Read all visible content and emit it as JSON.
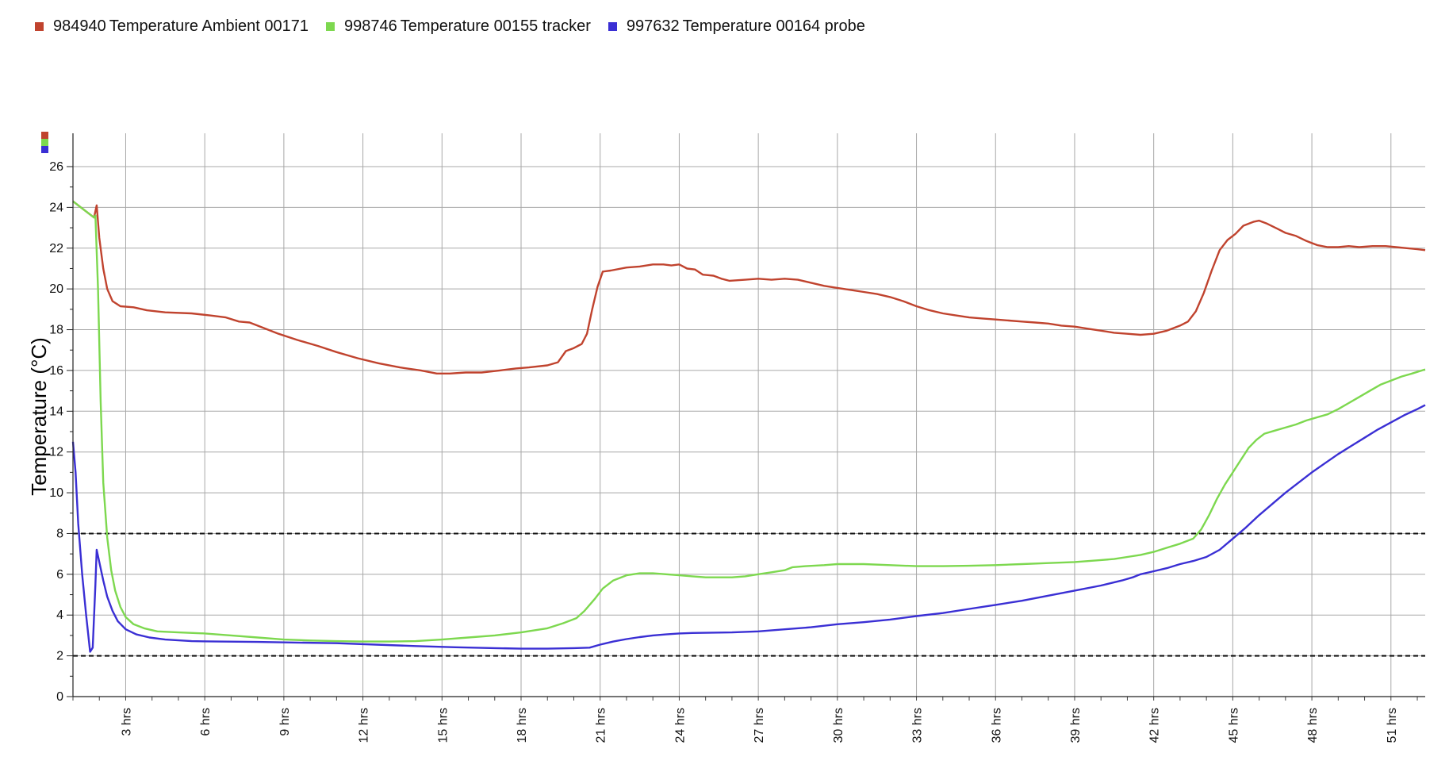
{
  "legend": [
    {
      "id": "984940",
      "label": "Temperature Ambient 00171",
      "color": "#c0432e"
    },
    {
      "id": "998746",
      "label": "Temperature 00155 tracker",
      "color": "#7dd84f"
    },
    {
      "id": "997632",
      "label": "Temperature 00164 probe",
      "color": "#3a2fd4"
    }
  ],
  "chart_data": {
    "type": "line",
    "title": "",
    "xlabel": "",
    "ylabel": "Temperature (°C)",
    "xlim": [
      1,
      52.3
    ],
    "ylim": [
      0,
      26
    ],
    "x_unit": "hrs",
    "x_ticks": [
      3,
      6,
      9,
      12,
      15,
      18,
      21,
      24,
      27,
      30,
      33,
      36,
      39,
      42,
      45,
      48,
      51
    ],
    "x_tick_labels": [
      "3 hrs",
      "6 hrs",
      "9 hrs",
      "12 hrs",
      "15 hrs",
      "18 hrs",
      "21 hrs",
      "24 hrs",
      "27 hrs",
      "30 hrs",
      "33 hrs",
      "36 hrs",
      "39 hrs",
      "42 hrs",
      "45 hrs",
      "48 hrs",
      "51 hrs"
    ],
    "y_ticks": [
      0,
      2,
      4,
      6,
      8,
      10,
      12,
      14,
      16,
      18,
      20,
      22,
      24,
      26
    ],
    "y_tick_labels": [
      "0",
      "2",
      "4",
      "6",
      "8",
      "10",
      "12",
      "14",
      "16",
      "18",
      "20",
      "22",
      "24",
      "26"
    ],
    "grid": true,
    "legend_position": "top-left",
    "thresholds": [
      {
        "value": 8,
        "style": "dashed",
        "color": "#111111"
      },
      {
        "value": 2,
        "style": "dashed",
        "color": "#111111"
      }
    ],
    "series": [
      {
        "name": "984940 Temperature Ambient 00171",
        "color": "#c0432e",
        "points": [
          [
            1.0,
            24.3
          ],
          [
            1.3,
            24.0
          ],
          [
            1.6,
            23.7
          ],
          [
            1.8,
            23.5
          ],
          [
            1.9,
            24.1
          ],
          [
            2.0,
            22.5
          ],
          [
            2.15,
            21.0
          ],
          [
            2.3,
            20.0
          ],
          [
            2.5,
            19.4
          ],
          [
            2.8,
            19.15
          ],
          [
            3.3,
            19.1
          ],
          [
            3.8,
            18.95
          ],
          [
            4.5,
            18.85
          ],
          [
            5.5,
            18.8
          ],
          [
            6.2,
            18.7
          ],
          [
            6.8,
            18.6
          ],
          [
            7.3,
            18.4
          ],
          [
            7.7,
            18.35
          ],
          [
            8.0,
            18.2
          ],
          [
            8.8,
            17.8
          ],
          [
            9.5,
            17.5
          ],
          [
            10.3,
            17.2
          ],
          [
            11.0,
            16.9
          ],
          [
            11.8,
            16.6
          ],
          [
            12.6,
            16.35
          ],
          [
            13.4,
            16.15
          ],
          [
            14.2,
            16.0
          ],
          [
            14.8,
            15.85
          ],
          [
            15.3,
            15.85
          ],
          [
            15.9,
            15.9
          ],
          [
            16.5,
            15.9
          ],
          [
            17.2,
            16.0
          ],
          [
            17.8,
            16.1
          ],
          [
            18.3,
            16.15
          ],
          [
            19.0,
            16.25
          ],
          [
            19.4,
            16.4
          ],
          [
            19.7,
            16.95
          ],
          [
            20.0,
            17.1
          ],
          [
            20.3,
            17.3
          ],
          [
            20.5,
            17.8
          ],
          [
            20.7,
            19.0
          ],
          [
            20.9,
            20.1
          ],
          [
            21.1,
            20.85
          ],
          [
            21.4,
            20.9
          ],
          [
            22.0,
            21.05
          ],
          [
            22.5,
            21.1
          ],
          [
            23.0,
            21.2
          ],
          [
            23.4,
            21.2
          ],
          [
            23.7,
            21.15
          ],
          [
            24.0,
            21.2
          ],
          [
            24.3,
            21.0
          ],
          [
            24.6,
            20.95
          ],
          [
            24.9,
            20.7
          ],
          [
            25.3,
            20.65
          ],
          [
            25.6,
            20.5
          ],
          [
            25.9,
            20.4
          ],
          [
            26.5,
            20.45
          ],
          [
            27.0,
            20.5
          ],
          [
            27.5,
            20.45
          ],
          [
            28.0,
            20.5
          ],
          [
            28.5,
            20.45
          ],
          [
            29.0,
            20.3
          ],
          [
            29.5,
            20.15
          ],
          [
            30.0,
            20.05
          ],
          [
            30.5,
            19.95
          ],
          [
            31.0,
            19.85
          ],
          [
            31.5,
            19.75
          ],
          [
            32.0,
            19.6
          ],
          [
            32.5,
            19.4
          ],
          [
            33.0,
            19.15
          ],
          [
            33.5,
            18.95
          ],
          [
            34.0,
            18.8
          ],
          [
            34.5,
            18.7
          ],
          [
            35.0,
            18.6
          ],
          [
            35.5,
            18.55
          ],
          [
            36.0,
            18.5
          ],
          [
            36.5,
            18.45
          ],
          [
            37.0,
            18.4
          ],
          [
            37.5,
            18.35
          ],
          [
            38.0,
            18.3
          ],
          [
            38.5,
            18.2
          ],
          [
            39.0,
            18.15
          ],
          [
            39.5,
            18.05
          ],
          [
            40.0,
            17.95
          ],
          [
            40.5,
            17.85
          ],
          [
            41.0,
            17.8
          ],
          [
            41.5,
            17.75
          ],
          [
            42.0,
            17.8
          ],
          [
            42.5,
            17.95
          ],
          [
            43.0,
            18.2
          ],
          [
            43.3,
            18.4
          ],
          [
            43.6,
            18.9
          ],
          [
            43.9,
            19.8
          ],
          [
            44.2,
            20.9
          ],
          [
            44.5,
            21.9
          ],
          [
            44.8,
            22.4
          ],
          [
            45.1,
            22.7
          ],
          [
            45.4,
            23.1
          ],
          [
            45.8,
            23.3
          ],
          [
            46.0,
            23.35
          ],
          [
            46.3,
            23.2
          ],
          [
            46.7,
            22.95
          ],
          [
            47.0,
            22.75
          ],
          [
            47.4,
            22.6
          ],
          [
            47.8,
            22.35
          ],
          [
            48.2,
            22.15
          ],
          [
            48.6,
            22.05
          ],
          [
            49.0,
            22.05
          ],
          [
            49.4,
            22.1
          ],
          [
            49.8,
            22.05
          ],
          [
            50.3,
            22.1
          ],
          [
            50.8,
            22.1
          ],
          [
            51.2,
            22.05
          ],
          [
            51.6,
            22.0
          ],
          [
            52.0,
            21.95
          ],
          [
            52.3,
            21.9
          ]
        ]
      },
      {
        "name": "998746 Temperature 00155 tracker",
        "color": "#7dd84f",
        "points": [
          [
            1.0,
            24.3
          ],
          [
            1.3,
            24.0
          ],
          [
            1.6,
            23.7
          ],
          [
            1.8,
            23.5
          ],
          [
            1.85,
            23.6
          ],
          [
            1.95,
            20.0
          ],
          [
            2.05,
            14.5
          ],
          [
            2.15,
            10.5
          ],
          [
            2.3,
            7.8
          ],
          [
            2.45,
            6.2
          ],
          [
            2.6,
            5.2
          ],
          [
            2.8,
            4.4
          ],
          [
            3.0,
            3.9
          ],
          [
            3.3,
            3.55
          ],
          [
            3.7,
            3.35
          ],
          [
            4.2,
            3.2
          ],
          [
            5.0,
            3.15
          ],
          [
            6.0,
            3.1
          ],
          [
            7.0,
            3.0
          ],
          [
            8.0,
            2.9
          ],
          [
            9.0,
            2.8
          ],
          [
            10.0,
            2.75
          ],
          [
            11.0,
            2.72
          ],
          [
            12.0,
            2.7
          ],
          [
            13.0,
            2.7
          ],
          [
            14.0,
            2.72
          ],
          [
            15.0,
            2.8
          ],
          [
            16.0,
            2.9
          ],
          [
            17.0,
            3.0
          ],
          [
            18.0,
            3.15
          ],
          [
            19.0,
            3.35
          ],
          [
            19.6,
            3.6
          ],
          [
            20.1,
            3.85
          ],
          [
            20.4,
            4.2
          ],
          [
            20.8,
            4.8
          ],
          [
            21.1,
            5.3
          ],
          [
            21.5,
            5.7
          ],
          [
            22.0,
            5.95
          ],
          [
            22.5,
            6.05
          ],
          [
            23.0,
            6.05
          ],
          [
            23.5,
            6.0
          ],
          [
            24.0,
            5.95
          ],
          [
            24.5,
            5.9
          ],
          [
            25.0,
            5.85
          ],
          [
            25.5,
            5.85
          ],
          [
            26.0,
            5.85
          ],
          [
            26.5,
            5.9
          ],
          [
            27.0,
            6.0
          ],
          [
            27.5,
            6.1
          ],
          [
            28.0,
            6.2
          ],
          [
            28.3,
            6.35
          ],
          [
            28.8,
            6.4
          ],
          [
            29.5,
            6.45
          ],
          [
            30.0,
            6.5
          ],
          [
            30.5,
            6.5
          ],
          [
            31.0,
            6.5
          ],
          [
            32.0,
            6.45
          ],
          [
            33.0,
            6.4
          ],
          [
            34.0,
            6.4
          ],
          [
            35.0,
            6.42
          ],
          [
            36.0,
            6.45
          ],
          [
            37.0,
            6.5
          ],
          [
            38.0,
            6.55
          ],
          [
            39.0,
            6.6
          ],
          [
            40.0,
            6.7
          ],
          [
            40.5,
            6.75
          ],
          [
            41.0,
            6.85
          ],
          [
            41.5,
            6.95
          ],
          [
            42.0,
            7.1
          ],
          [
            42.5,
            7.3
          ],
          [
            43.0,
            7.5
          ],
          [
            43.5,
            7.75
          ],
          [
            43.8,
            8.2
          ],
          [
            44.1,
            8.9
          ],
          [
            44.4,
            9.7
          ],
          [
            44.7,
            10.4
          ],
          [
            45.0,
            11.0
          ],
          [
            45.3,
            11.6
          ],
          [
            45.6,
            12.2
          ],
          [
            45.9,
            12.6
          ],
          [
            46.2,
            12.9
          ],
          [
            46.6,
            13.05
          ],
          [
            47.0,
            13.2
          ],
          [
            47.4,
            13.35
          ],
          [
            47.8,
            13.55
          ],
          [
            48.2,
            13.7
          ],
          [
            48.6,
            13.85
          ],
          [
            49.0,
            14.1
          ],
          [
            49.4,
            14.4
          ],
          [
            49.8,
            14.7
          ],
          [
            50.2,
            15.0
          ],
          [
            50.6,
            15.3
          ],
          [
            51.0,
            15.5
          ],
          [
            51.4,
            15.7
          ],
          [
            51.8,
            15.85
          ],
          [
            52.3,
            16.05
          ]
        ]
      },
      {
        "name": "997632 Temperature 00164 probe",
        "color": "#3a2fd4",
        "points": [
          [
            1.0,
            12.5
          ],
          [
            1.1,
            11.0
          ],
          [
            1.2,
            8.5
          ],
          [
            1.35,
            6.0
          ],
          [
            1.5,
            4.0
          ],
          [
            1.65,
            2.2
          ],
          [
            1.75,
            2.4
          ],
          [
            1.85,
            5.5
          ],
          [
            1.9,
            7.2
          ],
          [
            2.0,
            6.6
          ],
          [
            2.15,
            5.7
          ],
          [
            2.3,
            4.9
          ],
          [
            2.5,
            4.2
          ],
          [
            2.7,
            3.7
          ],
          [
            3.0,
            3.3
          ],
          [
            3.4,
            3.05
          ],
          [
            3.9,
            2.9
          ],
          [
            4.5,
            2.8
          ],
          [
            5.5,
            2.72
          ],
          [
            6.5,
            2.7
          ],
          [
            8.0,
            2.68
          ],
          [
            9.5,
            2.65
          ],
          [
            11.0,
            2.62
          ],
          [
            12.5,
            2.55
          ],
          [
            14.0,
            2.48
          ],
          [
            15.5,
            2.42
          ],
          [
            17.0,
            2.38
          ],
          [
            18.0,
            2.35
          ],
          [
            19.0,
            2.35
          ],
          [
            20.0,
            2.38
          ],
          [
            20.6,
            2.4
          ],
          [
            21.0,
            2.55
          ],
          [
            21.5,
            2.7
          ],
          [
            22.0,
            2.82
          ],
          [
            22.5,
            2.92
          ],
          [
            23.0,
            3.0
          ],
          [
            23.5,
            3.05
          ],
          [
            24.0,
            3.1
          ],
          [
            24.5,
            3.12
          ],
          [
            25.0,
            3.13
          ],
          [
            26.0,
            3.15
          ],
          [
            27.0,
            3.2
          ],
          [
            28.0,
            3.3
          ],
          [
            29.0,
            3.4
          ],
          [
            30.0,
            3.55
          ],
          [
            31.0,
            3.65
          ],
          [
            32.0,
            3.78
          ],
          [
            33.0,
            3.95
          ],
          [
            34.0,
            4.1
          ],
          [
            35.0,
            4.3
          ],
          [
            36.0,
            4.5
          ],
          [
            37.0,
            4.7
          ],
          [
            38.0,
            4.95
          ],
          [
            39.0,
            5.2
          ],
          [
            40.0,
            5.45
          ],
          [
            40.8,
            5.7
          ],
          [
            41.2,
            5.85
          ],
          [
            41.5,
            6.0
          ],
          [
            42.0,
            6.15
          ],
          [
            42.5,
            6.3
          ],
          [
            43.0,
            6.5
          ],
          [
            43.5,
            6.65
          ],
          [
            44.0,
            6.85
          ],
          [
            44.5,
            7.2
          ],
          [
            45.0,
            7.75
          ],
          [
            45.5,
            8.3
          ],
          [
            46.0,
            8.9
          ],
          [
            46.5,
            9.45
          ],
          [
            47.0,
            10.0
          ],
          [
            47.5,
            10.5
          ],
          [
            48.0,
            11.0
          ],
          [
            48.5,
            11.45
          ],
          [
            49.0,
            11.9
          ],
          [
            49.5,
            12.3
          ],
          [
            50.0,
            12.7
          ],
          [
            50.5,
            13.1
          ],
          [
            51.0,
            13.45
          ],
          [
            51.5,
            13.8
          ],
          [
            52.0,
            14.1
          ],
          [
            52.3,
            14.3
          ]
        ]
      }
    ]
  }
}
